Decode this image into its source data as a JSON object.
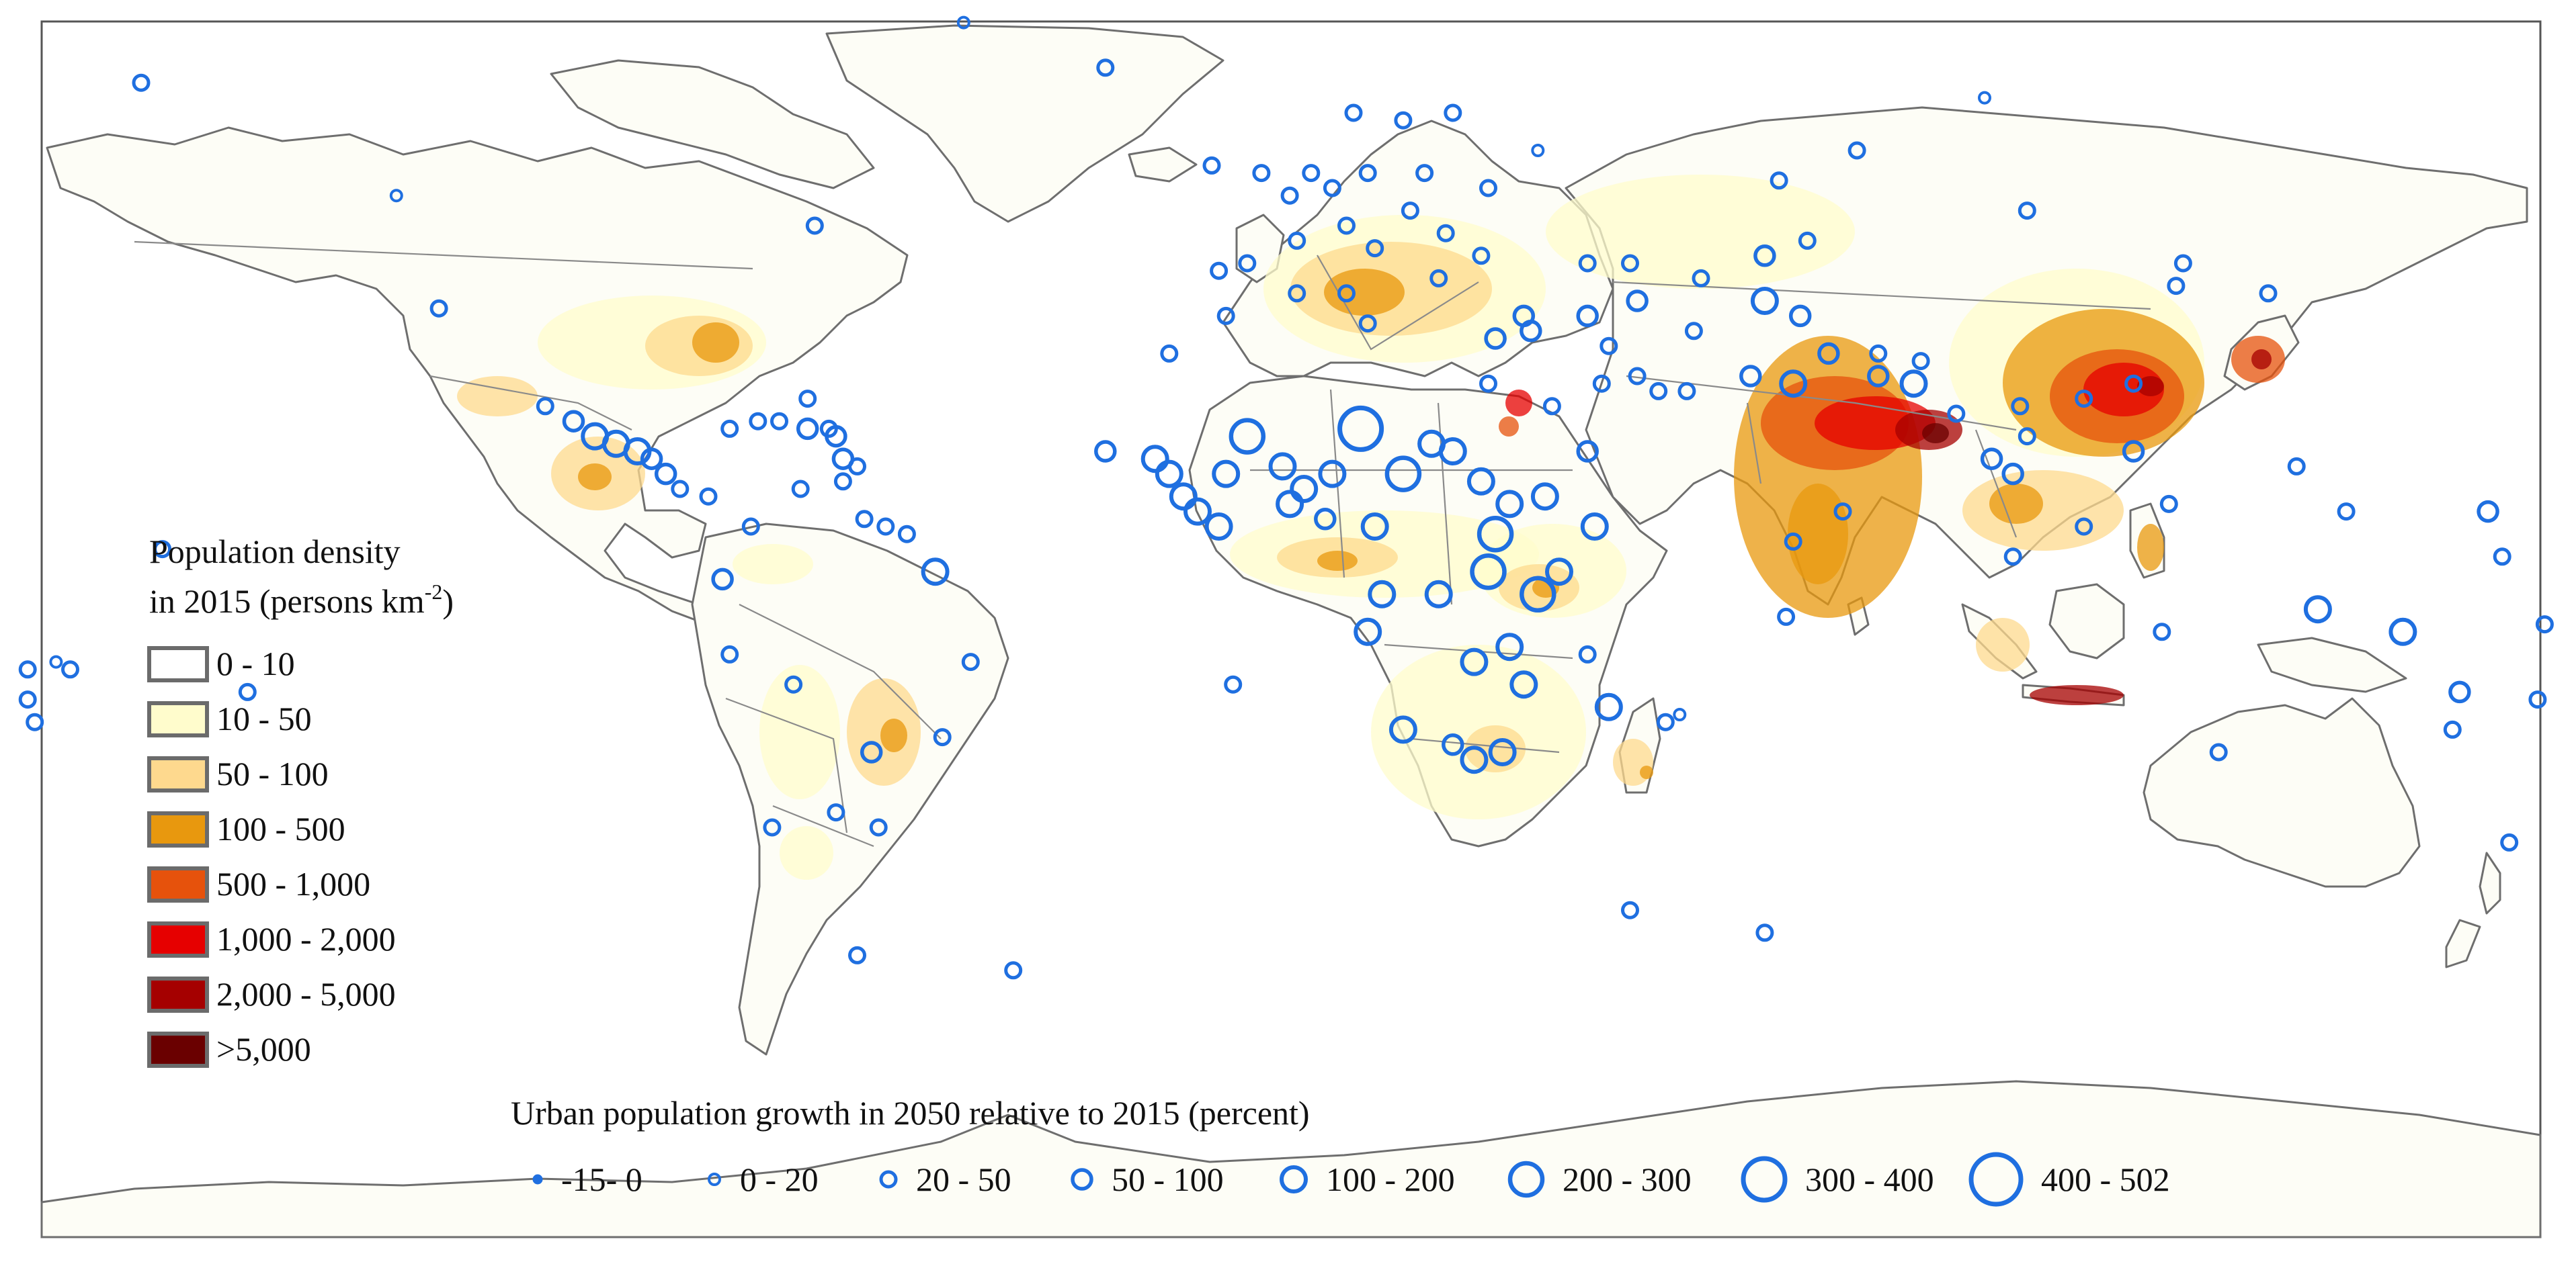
{
  "density_legend": {
    "title_line1": "Population density",
    "title_line2_prefix": "in 2015 (persons km",
    "title_line2_sup": "-2",
    "title_line2_suffix": ")",
    "classes": [
      {
        "label": "0 - 10",
        "color": "#ffffff"
      },
      {
        "label": "10 - 50",
        "color": "#fffccc"
      },
      {
        "label": "50 - 100",
        "color": "#fed98e"
      },
      {
        "label": "100 - 500",
        "color": "#e8980e"
      },
      {
        "label": "500 - 1,000",
        "color": "#e6520c"
      },
      {
        "label": "1,000 - 2,000",
        "color": "#e60000"
      },
      {
        "label": "2,000 - 5,000",
        "color": "#a50000"
      },
      {
        "label": ">5,000",
        "color": "#6a0000"
      }
    ]
  },
  "growth_legend": {
    "title": "Urban population growth in 2050 relative to 2015 (percent)",
    "classes": [
      {
        "label": "-15- 0",
        "size_class": 1
      },
      {
        "label": "0 - 20",
        "size_class": 2
      },
      {
        "label": "20 - 50",
        "size_class": 3
      },
      {
        "label": "50 - 100",
        "size_class": 4
      },
      {
        "label": "100 - 200",
        "size_class": 5
      },
      {
        "label": "200 - 300",
        "size_class": 6
      },
      {
        "label": "300 - 400",
        "size_class": 7
      },
      {
        "label": "400 - 502",
        "size_class": 8
      }
    ]
  },
  "colors": {
    "circle": "#1f6fe0",
    "land_outline": "#6e6e6e",
    "frame": "#555555"
  },
  "regions": {
    "north-america": 1,
    "greenland": 1,
    "south-america": 2,
    "europe": 2,
    "africa": 2,
    "asia": 2,
    "australia": 1,
    "antarctica": 1
  },
  "urban_growth_points": [
    {
      "lon": -124,
      "lat": 49,
      "c": 2
    },
    {
      "lon": -118,
      "lat": 34,
      "c": 3
    },
    {
      "lon": -65,
      "lat": 45,
      "c": 3
    },
    {
      "lon": -160,
      "lat": 64,
      "c": 3
    },
    {
      "lon": -44,
      "lat": 72,
      "c": 2
    },
    {
      "lon": -24,
      "lat": 66,
      "c": 3
    },
    {
      "lon": -66,
      "lat": 22,
      "c": 3
    },
    {
      "lon": -103,
      "lat": 21,
      "c": 3
    },
    {
      "lon": -99,
      "lat": 19,
      "c": 4
    },
    {
      "lon": -96,
      "lat": 17,
      "c": 5
    },
    {
      "lon": -93,
      "lat": 16,
      "c": 5
    },
    {
      "lon": -90,
      "lat": 15,
      "c": 5
    },
    {
      "lon": -88,
      "lat": 14,
      "c": 4
    },
    {
      "lon": -86,
      "lat": 12,
      "c": 4
    },
    {
      "lon": -84,
      "lat": 10,
      "c": 3
    },
    {
      "lon": -80,
      "lat": 9,
      "c": 3
    },
    {
      "lon": -77,
      "lat": 18,
      "c": 3
    },
    {
      "lon": -73,
      "lat": 19,
      "c": 3
    },
    {
      "lon": -70,
      "lat": 19,
      "c": 3
    },
    {
      "lon": -66,
      "lat": 18,
      "c": 4
    },
    {
      "lon": -62,
      "lat": 17,
      "c": 4
    },
    {
      "lon": -61,
      "lat": 14,
      "c": 4
    },
    {
      "lon": -61,
      "lat": 11,
      "c": 3
    },
    {
      "lon": -63,
      "lat": 18,
      "c": 3
    },
    {
      "lon": -59,
      "lat": 13,
      "c": 3
    },
    {
      "lon": -74,
      "lat": 5,
      "c": 3
    },
    {
      "lon": -67,
      "lat": 10,
      "c": 3
    },
    {
      "lon": -58,
      "lat": 6,
      "c": 3
    },
    {
      "lon": -55,
      "lat": 5,
      "c": 3
    },
    {
      "lon": -52,
      "lat": 4,
      "c": 3
    },
    {
      "lon": -48,
      "lat": -1,
      "c": 5
    },
    {
      "lon": -78,
      "lat": -2,
      "c": 4
    },
    {
      "lon": -77,
      "lat": -12,
      "c": 3
    },
    {
      "lon": -68,
      "lat": -16,
      "c": 3
    },
    {
      "lon": -57,
      "lat": -25,
      "c": 4
    },
    {
      "lon": -47,
      "lat": -23,
      "c": 3
    },
    {
      "lon": -43,
      "lat": -13,
      "c": 3
    },
    {
      "lon": -62,
      "lat": -33,
      "c": 3
    },
    {
      "lon": -56,
      "lat": -35,
      "c": 3
    },
    {
      "lon": -71,
      "lat": -35,
      "c": 3
    },
    {
      "lon": -59,
      "lat": -52,
      "c": 3
    },
    {
      "lon": -37,
      "lat": -54,
      "c": 3
    },
    {
      "lon": -145,
      "lat": -17,
      "c": 3
    },
    {
      "lon": -170,
      "lat": -14,
      "c": 3
    },
    {
      "lon": -175,
      "lat": -21,
      "c": 3
    },
    {
      "lon": -176,
      "lat": -14,
      "c": 3
    },
    {
      "lon": -172,
      "lat": -13,
      "c": 2
    },
    {
      "lon": -176,
      "lat": -18,
      "c": 3
    },
    {
      "lon": -157,
      "lat": 2,
      "c": 3
    },
    {
      "lon": -9,
      "lat": 53,
      "c": 3
    },
    {
      "lon": -2,
      "lat": 52,
      "c": 3
    },
    {
      "lon": 2,
      "lat": 49,
      "c": 3
    },
    {
      "lon": 5,
      "lat": 52,
      "c": 3
    },
    {
      "lon": 8,
      "lat": 50,
      "c": 3
    },
    {
      "lon": 13,
      "lat": 52,
      "c": 3
    },
    {
      "lon": 10,
      "lat": 45,
      "c": 3
    },
    {
      "lon": 3,
      "lat": 43,
      "c": 3
    },
    {
      "lon": -4,
      "lat": 40,
      "c": 3
    },
    {
      "lon": -8,
      "lat": 39,
      "c": 3
    },
    {
      "lon": 14,
      "lat": 42,
      "c": 3
    },
    {
      "lon": 19,
      "lat": 47,
      "c": 3
    },
    {
      "lon": 21,
      "lat": 52,
      "c": 3
    },
    {
      "lon": 25,
      "lat": 60,
      "c": 3
    },
    {
      "lon": 11,
      "lat": 60,
      "c": 3
    },
    {
      "lon": 18,
      "lat": 59,
      "c": 3
    },
    {
      "lon": 24,
      "lat": 44,
      "c": 3
    },
    {
      "lon": 23,
      "lat": 38,
      "c": 3
    },
    {
      "lon": 29,
      "lat": 41,
      "c": 3
    },
    {
      "lon": 30,
      "lat": 50,
      "c": 3
    },
    {
      "lon": 37,
      "lat": 55,
      "c": 2
    },
    {
      "lon": 44,
      "lat": 40,
      "c": 3
    },
    {
      "lon": 50,
      "lat": 40,
      "c": 3
    },
    {
      "lon": 69,
      "lat": 41,
      "c": 4
    },
    {
      "lon": 71,
      "lat": 51,
      "c": 3
    },
    {
      "lon": 75,
      "lat": 43,
      "c": 3
    },
    {
      "lon": 82,
      "lat": 55,
      "c": 3
    },
    {
      "lon": 60,
      "lat": 38,
      "c": 3
    },
    {
      "lon": 69,
      "lat": 35,
      "c": 5
    },
    {
      "lon": 74,
      "lat": 33,
      "c": 4
    },
    {
      "lon": 73,
      "lat": 24,
      "c": 5
    },
    {
      "lon": 78,
      "lat": 28,
      "c": 4
    },
    {
      "lon": 85,
      "lat": 25,
      "c": 4
    },
    {
      "lon": 90,
      "lat": 24,
      "c": 5
    },
    {
      "lon": 85,
      "lat": 28,
      "c": 3
    },
    {
      "lon": 91,
      "lat": 27,
      "c": 3
    },
    {
      "lon": 80,
      "lat": 7,
      "c": 3
    },
    {
      "lon": 73,
      "lat": 3,
      "c": 3
    },
    {
      "lon": 96,
      "lat": 20,
      "c": 3
    },
    {
      "lon": 101,
      "lat": 14,
      "c": 4
    },
    {
      "lon": 104,
      "lat": 12,
      "c": 4
    },
    {
      "lon": 106,
      "lat": 17,
      "c": 3
    },
    {
      "lon": 105,
      "lat": 21,
      "c": 3
    },
    {
      "lon": 114,
      "lat": 22,
      "c": 3
    },
    {
      "lon": 121,
      "lat": 24,
      "c": 3
    },
    {
      "lon": 121,
      "lat": 15,
      "c": 4
    },
    {
      "lon": 114,
      "lat": 5,
      "c": 3
    },
    {
      "lon": 104,
      "lat": 1,
      "c": 3
    },
    {
      "lon": 126,
      "lat": 8,
      "c": 3
    },
    {
      "lon": 125,
      "lat": -9,
      "c": 3
    },
    {
      "lon": 147,
      "lat": -6,
      "c": 5
    },
    {
      "lon": 159,
      "lat": -9,
      "c": 5
    },
    {
      "lon": 167,
      "lat": -17,
      "c": 4
    },
    {
      "lon": 166,
      "lat": -22,
      "c": 3
    },
    {
      "lon": 178,
      "lat": -18,
      "c": 3
    },
    {
      "lon": 144,
      "lat": 13,
      "c": 3
    },
    {
      "lon": 151,
      "lat": 7,
      "c": 3
    },
    {
      "lon": 171,
      "lat": 7,
      "c": 4
    },
    {
      "lon": 173,
      "lat": 1,
      "c": 3
    },
    {
      "lon": 179,
      "lat": -8,
      "c": 3
    },
    {
      "lon": 174,
      "lat": -37,
      "c": 3
    },
    {
      "lon": 133,
      "lat": -25,
      "c": 3
    },
    {
      "lon": 127,
      "lat": 37,
      "c": 3
    },
    {
      "lon": 128,
      "lat": 40,
      "c": 3
    },
    {
      "lon": 106,
      "lat": 47,
      "c": 3
    },
    {
      "lon": 100,
      "lat": 62,
      "c": 2
    },
    {
      "lon": 140,
      "lat": 36,
      "c": 3
    },
    {
      "lon": 72,
      "lat": -7,
      "c": 3
    },
    {
      "lon": 57,
      "lat": -20,
      "c": 2
    },
    {
      "lon": 47,
      "lat": -19,
      "c": 5
    },
    {
      "lon": 55,
      "lat": -21,
      "c": 3
    },
    {
      "lon": 44,
      "lat": -12,
      "c": 3
    },
    {
      "lon": 69,
      "lat": -49,
      "c": 3
    },
    {
      "lon": 50,
      "lat": -46,
      "c": 3
    },
    {
      "lon": -6,
      "lat": -16,
      "c": 3
    },
    {
      "lon": -24,
      "lat": 15,
      "c": 4
    },
    {
      "lon": -17,
      "lat": 14,
      "c": 5
    },
    {
      "lon": -15,
      "lat": 12,
      "c": 5
    },
    {
      "lon": -13,
      "lat": 9,
      "c": 5
    },
    {
      "lon": -11,
      "lat": 7,
      "c": 5
    },
    {
      "lon": -8,
      "lat": 5,
      "c": 5
    },
    {
      "lon": -7,
      "lat": 12,
      "c": 5
    },
    {
      "lon": -4,
      "lat": 17,
      "c": 6
    },
    {
      "lon": 1,
      "lat": 13,
      "c": 5
    },
    {
      "lon": 2,
      "lat": 8,
      "c": 5
    },
    {
      "lon": 4,
      "lat": 10,
      "c": 5
    },
    {
      "lon": 8,
      "lat": 12,
      "c": 5
    },
    {
      "lon": 7,
      "lat": 6,
      "c": 4
    },
    {
      "lon": 12,
      "lat": 18,
      "c": 7
    },
    {
      "lon": 14,
      "lat": 5,
      "c": 5
    },
    {
      "lon": 18,
      "lat": 12,
      "c": 6
    },
    {
      "lon": 22,
      "lat": 16,
      "c": 5
    },
    {
      "lon": 25,
      "lat": 15,
      "c": 5
    },
    {
      "lon": 29,
      "lat": 11,
      "c": 5
    },
    {
      "lon": 31,
      "lat": 4,
      "c": 6
    },
    {
      "lon": 33,
      "lat": 8,
      "c": 5
    },
    {
      "lon": 38,
      "lat": 9,
      "c": 5
    },
    {
      "lon": 45,
      "lat": 5,
      "c": 5
    },
    {
      "lon": 40,
      "lat": -1,
      "c": 5
    },
    {
      "lon": 37,
      "lat": -4,
      "c": 6
    },
    {
      "lon": 30,
      "lat": -1,
      "c": 6
    },
    {
      "lon": 23,
      "lat": -4,
      "c": 5
    },
    {
      "lon": 15,
      "lat": -4,
      "c": 5
    },
    {
      "lon": 13,
      "lat": -9,
      "c": 5
    },
    {
      "lon": 28,
      "lat": -13,
      "c": 5
    },
    {
      "lon": 33,
      "lat": -11,
      "c": 5
    },
    {
      "lon": 35,
      "lat": -16,
      "c": 5
    },
    {
      "lon": 32,
      "lat": -25,
      "c": 5
    },
    {
      "lon": 18,
      "lat": -22,
      "c": 5
    },
    {
      "lon": 25,
      "lat": -24,
      "c": 4
    },
    {
      "lon": 28,
      "lat": -26,
      "c": 5
    },
    {
      "lon": 31,
      "lat": 30,
      "c": 4
    },
    {
      "lon": 30,
      "lat": 24,
      "c": 3
    },
    {
      "lon": 13,
      "lat": 32,
      "c": 3
    },
    {
      "lon": 3,
      "lat": 36,
      "c": 3
    },
    {
      "lon": -7,
      "lat": 33,
      "c": 3
    },
    {
      "lon": -15,
      "lat": 28,
      "c": 3
    },
    {
      "lon": 10,
      "lat": 36,
      "c": 3
    },
    {
      "lon": 35,
      "lat": 33,
      "c": 4
    },
    {
      "lon": 36,
      "lat": 31,
      "c": 4
    },
    {
      "lon": 44,
      "lat": 33,
      "c": 4
    },
    {
      "lon": 47,
      "lat": 29,
      "c": 3
    },
    {
      "lon": 51,
      "lat": 25,
      "c": 3
    },
    {
      "lon": 46,
      "lat": 24,
      "c": 3
    },
    {
      "lon": 39,
      "lat": 21,
      "c": 3
    },
    {
      "lon": 44,
      "lat": 15,
      "c": 4
    },
    {
      "lon": 54,
      "lat": 23,
      "c": 3
    },
    {
      "lon": 58,
      "lat": 23,
      "c": 3
    },
    {
      "lon": 51,
      "lat": 35,
      "c": 4
    },
    {
      "lon": 59,
      "lat": 31,
      "c": 3
    },
    {
      "lon": 67,
      "lat": 25,
      "c": 4
    }
  ]
}
